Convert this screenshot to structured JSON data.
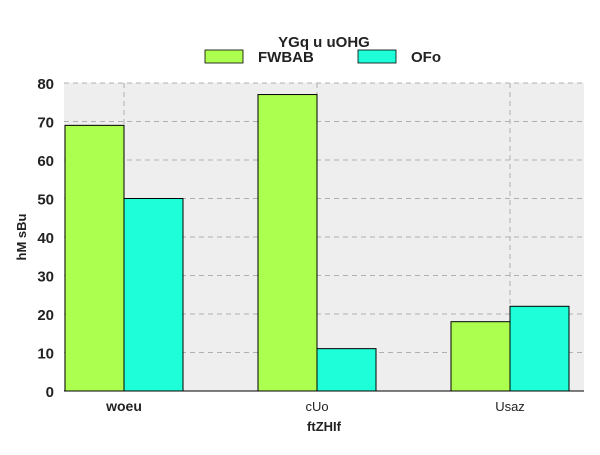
{
  "chart_data": {
    "type": "bar",
    "title": "YGq u uOHG",
    "xlabel": "ftZHIf",
    "ylabel": "hM sBu",
    "categories": [
      "woeu",
      "cUo",
      "Usaz"
    ],
    "series": [
      {
        "name": "FWBAB",
        "values": [
          69,
          77,
          18
        ],
        "color": "#adff4f"
      },
      {
        "name": "OFo",
        "values": [
          50,
          11,
          22
        ],
        "color": "#1effd9"
      }
    ],
    "ylim": [
      0,
      80
    ],
    "yticks": [
      "0",
      "10",
      "20",
      "30",
      "40",
      "50",
      "60",
      "70",
      "80"
    ],
    "grid": true,
    "legend_position": "top-center",
    "plot_background": "#eeeeee",
    "grid_color": "#b0b0b0"
  }
}
